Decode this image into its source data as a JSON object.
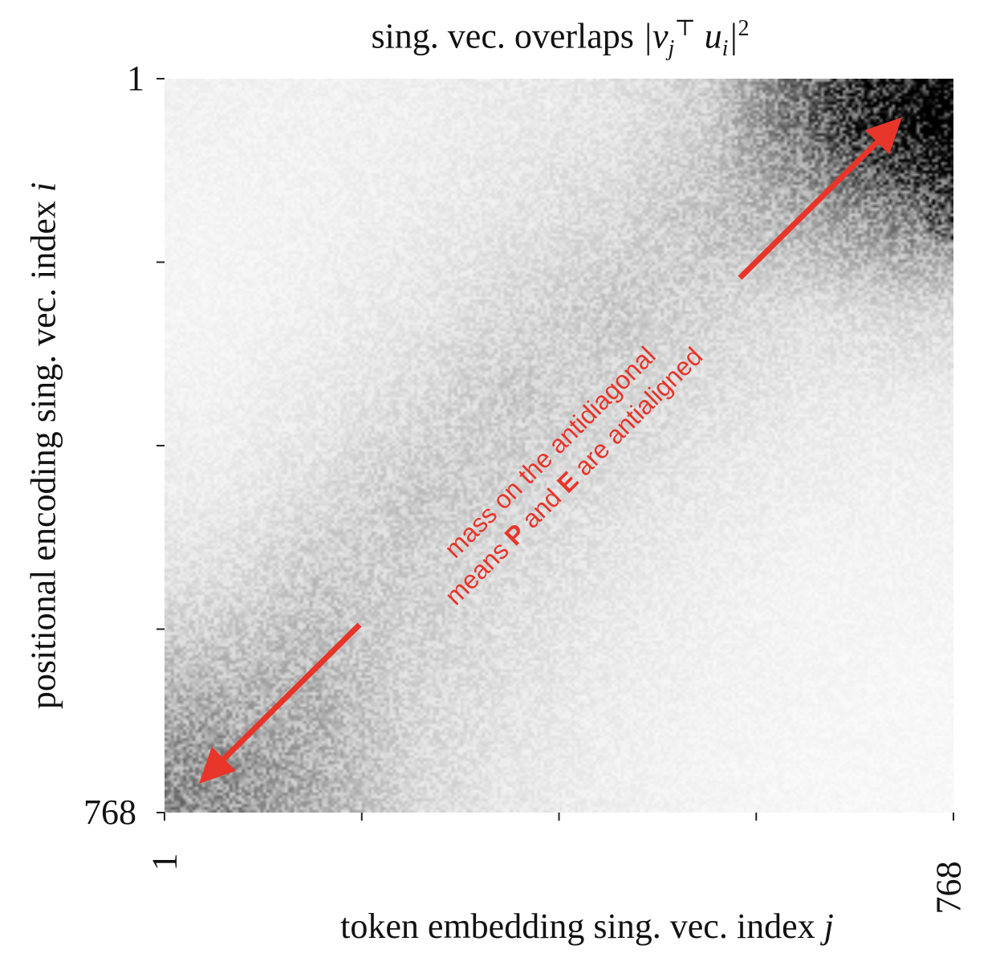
{
  "chart_data": {
    "type": "heatmap",
    "title": "sing. vec. overlaps |v_j^T u_i|^2",
    "title_parts": {
      "text": "sing. vec. overlaps ",
      "math": "|v",
      "sub": "j",
      "sup": "⊤",
      "math2": " u",
      "sub2": "i",
      "math3": "|",
      "sup2": "2"
    },
    "xlabel": "token embedding sing. vec. index",
    "xlabel_var": "j",
    "ylabel": "positional encoding sing. vec. index",
    "ylabel_var": "i",
    "x_range": [
      1,
      768
    ],
    "y_range": [
      1,
      768
    ],
    "y_inverted": true,
    "x_tick_labels": [
      "1",
      "768"
    ],
    "y_tick_labels": [
      "1",
      "768"
    ],
    "colormap": "Greys",
    "grid": false,
    "approx_intensity_grid_rows_i_top_to_bottom_cols_j_left_to_right": [
      [
        0.05,
        0.05,
        0.06,
        0.08,
        0.1,
        0.18,
        0.55,
        1.0
      ],
      [
        0.04,
        0.05,
        0.07,
        0.1,
        0.14,
        0.22,
        0.3,
        0.45
      ],
      [
        0.04,
        0.06,
        0.09,
        0.14,
        0.2,
        0.16,
        0.12,
        0.15
      ],
      [
        0.05,
        0.08,
        0.13,
        0.2,
        0.16,
        0.12,
        0.08,
        0.07
      ],
      [
        0.07,
        0.12,
        0.2,
        0.17,
        0.12,
        0.08,
        0.06,
        0.05
      ],
      [
        0.12,
        0.2,
        0.18,
        0.13,
        0.09,
        0.06,
        0.04,
        0.04
      ],
      [
        0.25,
        0.28,
        0.16,
        0.11,
        0.07,
        0.05,
        0.04,
        0.03
      ],
      [
        0.42,
        0.3,
        0.15,
        0.09,
        0.06,
        0.04,
        0.03,
        0.03
      ]
    ],
    "annotation": {
      "line1": "mass on the antidiagonal",
      "line2_a": "means ",
      "line2_b": "P",
      "line2_c": " and ",
      "line2_d": "E",
      "line2_e": " are antialigned",
      "color": "#e8352a"
    }
  }
}
